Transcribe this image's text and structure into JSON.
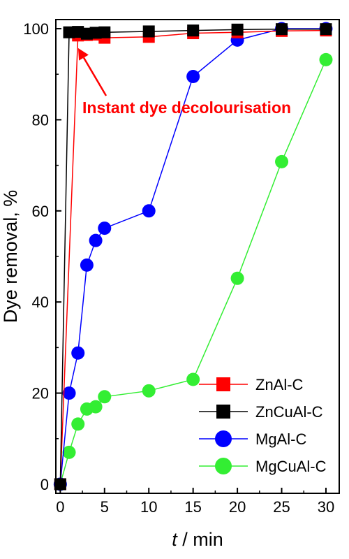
{
  "chart_data": {
    "type": "line",
    "xlabel_italic": "t",
    "xlabel_rest": " / min",
    "ylabel": "Dye removal, %",
    "xlim": [
      -0.5,
      31.5
    ],
    "ylim": [
      -2,
      102
    ],
    "x_ticks": [
      0,
      5,
      10,
      15,
      20,
      25,
      30
    ],
    "y_ticks": [
      0,
      20,
      40,
      60,
      80,
      100
    ],
    "legend_position": "bottom-right",
    "annotation": {
      "text": "Instant dye decolourisation",
      "color": "#ff0000",
      "points_to": {
        "x": 1.7,
        "y": 98.5
      }
    },
    "series": [
      {
        "name": "ZnAl-C",
        "marker": "square",
        "marker_color": "#ff0000",
        "line_color": "#ff0000",
        "x": [
          0,
          2,
          3,
          4,
          5,
          10,
          15,
          20,
          25,
          30
        ],
        "y": [
          0,
          98.5,
          98.6,
          98.7,
          98.0,
          98.2,
          99.0,
          99.2,
          99.5,
          99.6
        ]
      },
      {
        "name": "ZnCuAl-C",
        "marker": "square",
        "marker_color": "#000000",
        "line_color": "#000000",
        "x": [
          0,
          1,
          2,
          3,
          4,
          5,
          10,
          15,
          20,
          25,
          30
        ],
        "y": [
          0,
          99.2,
          99.3,
          98.9,
          99.1,
          99.2,
          99.4,
          99.6,
          99.8,
          99.9,
          99.9
        ]
      },
      {
        "name": "MgAl-C",
        "marker": "circle",
        "marker_color": "#0000ff",
        "line_color": "#0000ff",
        "x": [
          0,
          1,
          2,
          3,
          4,
          5,
          10,
          15,
          20,
          25,
          30
        ],
        "y": [
          0,
          20,
          28.8,
          48.1,
          53.5,
          56.2,
          60.0,
          89.5,
          97.5,
          100,
          100
        ]
      },
      {
        "name": "MgCuAl-C",
        "marker": "circle",
        "marker_color": "#33ee33",
        "line_color": "#33ee33",
        "x": [
          0,
          1,
          2,
          3,
          4,
          5,
          10,
          15,
          20,
          25,
          30
        ],
        "y": [
          0,
          7.0,
          13.2,
          16.5,
          17.0,
          19.2,
          20.5,
          23.0,
          45.2,
          70.8,
          93.2
        ]
      }
    ]
  }
}
